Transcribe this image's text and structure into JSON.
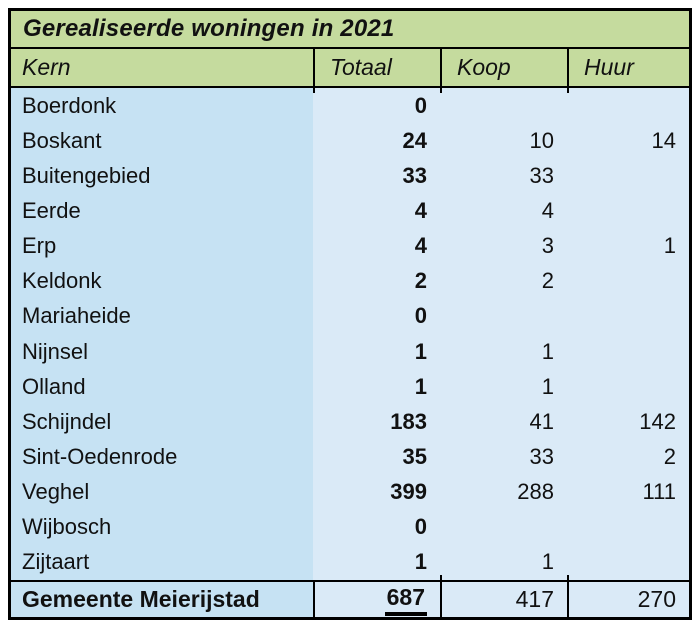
{
  "chart_data": {
    "type": "table",
    "title": "Gerealiseerde woningen in 2021",
    "columns": [
      "Kern",
      "Totaal",
      "Koop",
      "Huur"
    ],
    "rows": [
      {
        "kern": "Boerdonk",
        "totaal": "0",
        "koop": "",
        "huur": ""
      },
      {
        "kern": "Boskant",
        "totaal": "24",
        "koop": "10",
        "huur": "14"
      },
      {
        "kern": "Buitengebied",
        "totaal": "33",
        "koop": "33",
        "huur": ""
      },
      {
        "kern": "Eerde",
        "totaal": "4",
        "koop": "4",
        "huur": ""
      },
      {
        "kern": "Erp",
        "totaal": "4",
        "koop": "3",
        "huur": "1"
      },
      {
        "kern": "Keldonk",
        "totaal": "2",
        "koop": "2",
        "huur": ""
      },
      {
        "kern": "Mariaheide",
        "totaal": "0",
        "koop": "",
        "huur": ""
      },
      {
        "kern": "Nijnsel",
        "totaal": "1",
        "koop": "1",
        "huur": ""
      },
      {
        "kern": "Olland",
        "totaal": "1",
        "koop": "1",
        "huur": ""
      },
      {
        "kern": "Schijndel",
        "totaal": "183",
        "koop": "41",
        "huur": "142"
      },
      {
        "kern": "Sint-Oedenrode",
        "totaal": "35",
        "koop": "33",
        "huur": "2"
      },
      {
        "kern": "Veghel",
        "totaal": "399",
        "koop": "288",
        "huur": "111"
      },
      {
        "kern": "Wijbosch",
        "totaal": "0",
        "koop": "",
        "huur": ""
      },
      {
        "kern": "Zijtaart",
        "totaal": "1",
        "koop": "1",
        "huur": ""
      }
    ],
    "total_row": {
      "kern": "Gemeente Meierijstad",
      "totaal": "687",
      "koop": "417",
      "huur": "270"
    },
    "layout_hints": {
      "totaal_column_bold": true,
      "total_totaal_underlined": true
    }
  },
  "colors": {
    "header_green": "#c5db9e",
    "kern_column_blue": "#c6e2f3",
    "value_column_blue": "#daeaf7",
    "border_black": "#000000",
    "text": "#111111"
  }
}
